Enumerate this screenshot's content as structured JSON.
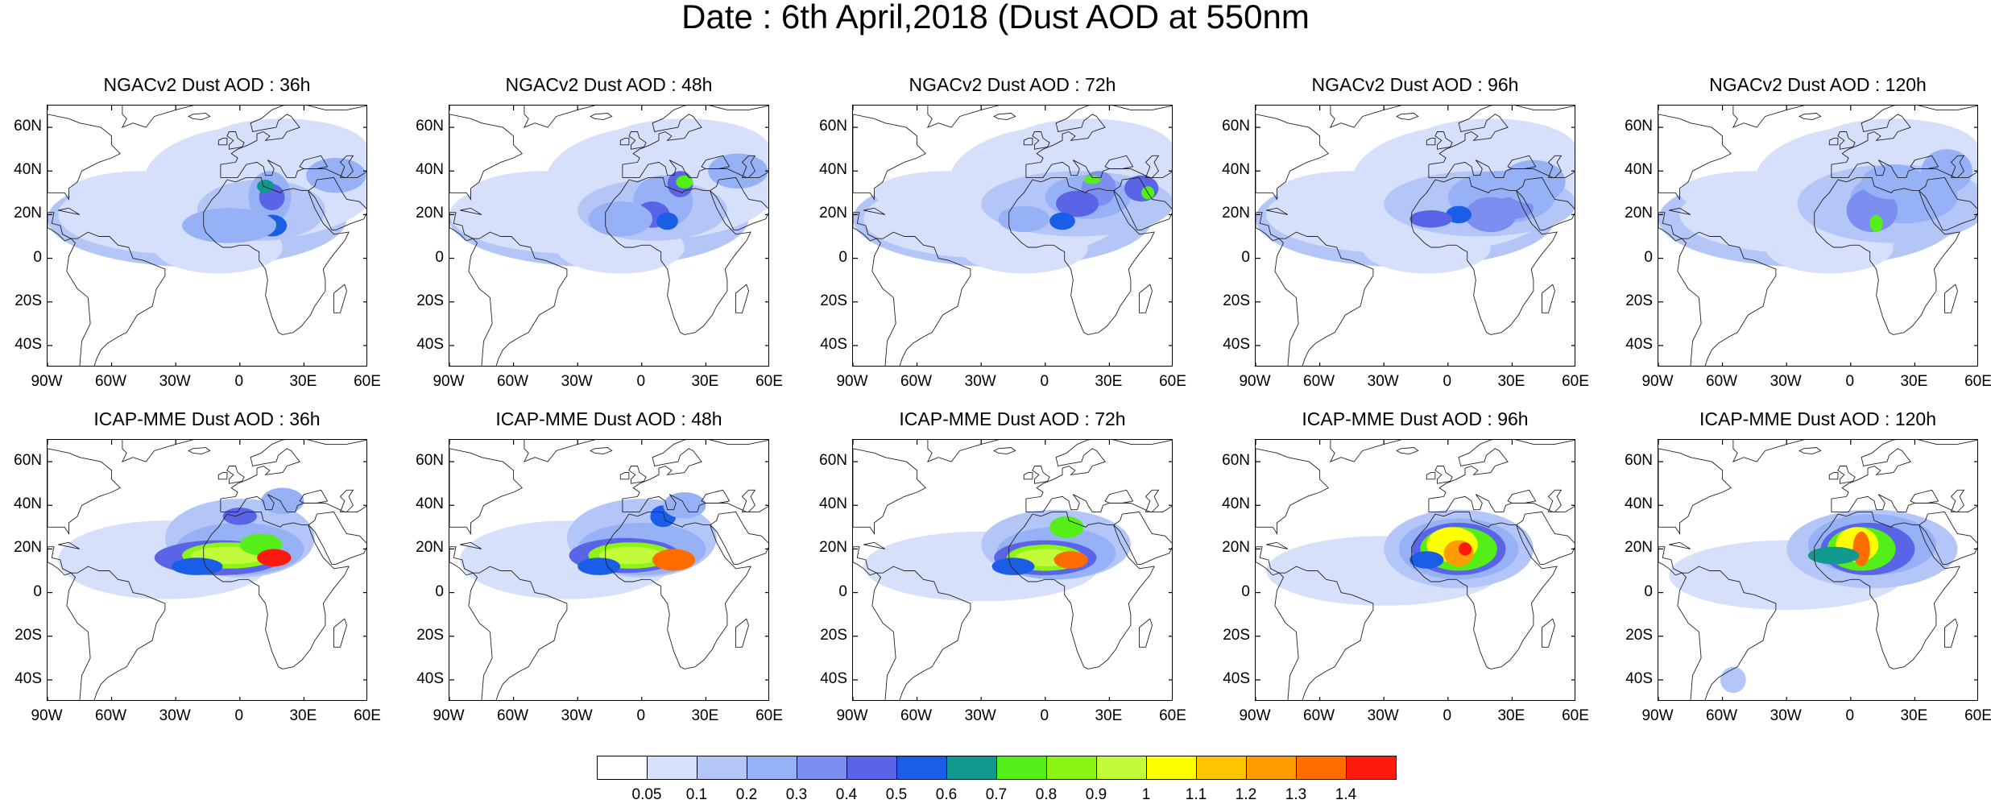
{
  "title": "Date : 6th April,2018 (Dust AOD at 550nm",
  "panels": [
    {
      "title": "NGACv2 Dust AOD : 36h",
      "model": "ngac",
      "lead": 36
    },
    {
      "title": "NGACv2 Dust AOD : 48h",
      "model": "ngac",
      "lead": 48
    },
    {
      "title": "NGACv2 Dust AOD : 72h",
      "model": "ngac",
      "lead": 72
    },
    {
      "title": "NGACv2 Dust AOD : 96h",
      "model": "ngac",
      "lead": 96
    },
    {
      "title": "NGACv2 Dust AOD : 120h",
      "model": "ngac",
      "lead": 120
    },
    {
      "title": "ICAP-MME Dust AOD : 36h",
      "model": "icap",
      "lead": 36
    },
    {
      "title": "ICAP-MME Dust AOD : 48h",
      "model": "icap",
      "lead": 48
    },
    {
      "title": "ICAP-MME Dust AOD : 72h",
      "model": "icap",
      "lead": 72
    },
    {
      "title": "ICAP-MME Dust AOD : 96h",
      "model": "icap",
      "lead": 96
    },
    {
      "title": "ICAP-MME Dust AOD : 120h",
      "model": "icap",
      "lead": 120
    }
  ],
  "lat_labels": [
    "60N",
    "40N",
    "20N",
    "0",
    "20S",
    "40S"
  ],
  "lat_values": [
    60,
    40,
    20,
    0,
    -20,
    -40
  ],
  "lon_labels": [
    "90W",
    "60W",
    "30W",
    "0",
    "30E",
    "60E"
  ],
  "lon_values": [
    -90,
    -60,
    -30,
    0,
    30,
    60
  ],
  "extent": {
    "lon_min": -90,
    "lon_max": 60,
    "lat_min": -50,
    "lat_max": 70
  },
  "colorbar": {
    "labels": [
      "0.05",
      "0.1",
      "0.2",
      "0.3",
      "0.4",
      "0.5",
      "0.6",
      "0.7",
      "0.8",
      "0.9",
      "1",
      "1.1",
      "1.2",
      "1.3",
      "1.4"
    ],
    "colors": [
      "#ffffff",
      "#d6e0fb",
      "#b4c6f8",
      "#96b1f5",
      "#7c8ff0",
      "#5a64e6",
      "#1a5ee8",
      "#12998f",
      "#55ee18",
      "#8cf515",
      "#c2fb3a",
      "#ffff00",
      "#ffc400",
      "#ff9c00",
      "#ff6c00",
      "#ff1a10"
    ]
  }
}
